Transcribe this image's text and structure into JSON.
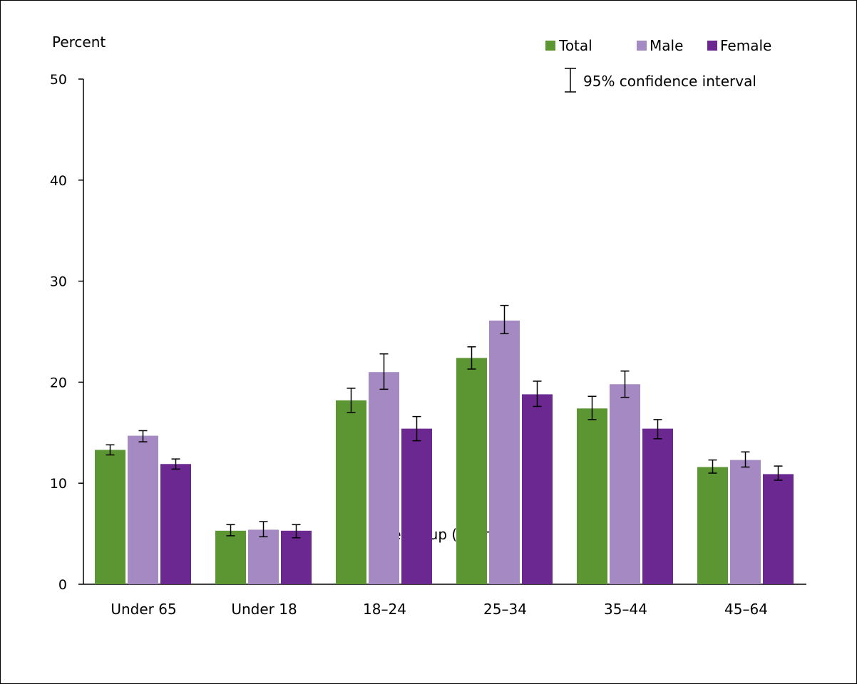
{
  "chart_data": {
    "type": "bar",
    "y_axis_title": "Percent",
    "xlabel": "Age group (years)",
    "ylim": [
      0,
      50
    ],
    "y_ticks": [
      0,
      10,
      20,
      30,
      40,
      50
    ],
    "categories": [
      "Under 65",
      "Under 18",
      "18–24",
      "25–34",
      "35–44",
      "45–64"
    ],
    "series": [
      {
        "name": "Total",
        "color": "#5b9632",
        "values": [
          13.3,
          5.3,
          18.2,
          22.4,
          17.4,
          11.6
        ],
        "ci_low": [
          12.8,
          4.8,
          17.0,
          21.3,
          16.3,
          11.0
        ],
        "ci_high": [
          13.8,
          5.9,
          19.4,
          23.5,
          18.6,
          12.3
        ]
      },
      {
        "name": "Male",
        "color": "#a589c2",
        "values": [
          14.7,
          5.4,
          21.0,
          26.1,
          19.8,
          12.3
        ],
        "ci_low": [
          14.1,
          4.7,
          19.3,
          24.8,
          18.5,
          11.6
        ],
        "ci_high": [
          15.2,
          6.2,
          22.8,
          27.6,
          21.1,
          13.1
        ]
      },
      {
        "name": "Female",
        "color": "#6a2890",
        "values": [
          11.9,
          5.3,
          15.4,
          18.8,
          15.4,
          10.9
        ],
        "ci_low": [
          11.4,
          4.6,
          14.2,
          17.6,
          14.4,
          10.3
        ],
        "ci_high": [
          12.4,
          5.9,
          16.6,
          20.1,
          16.3,
          11.7
        ]
      }
    ],
    "legend": {
      "position": "top-right",
      "ci_label": "95% confidence interval"
    },
    "grid": false
  }
}
